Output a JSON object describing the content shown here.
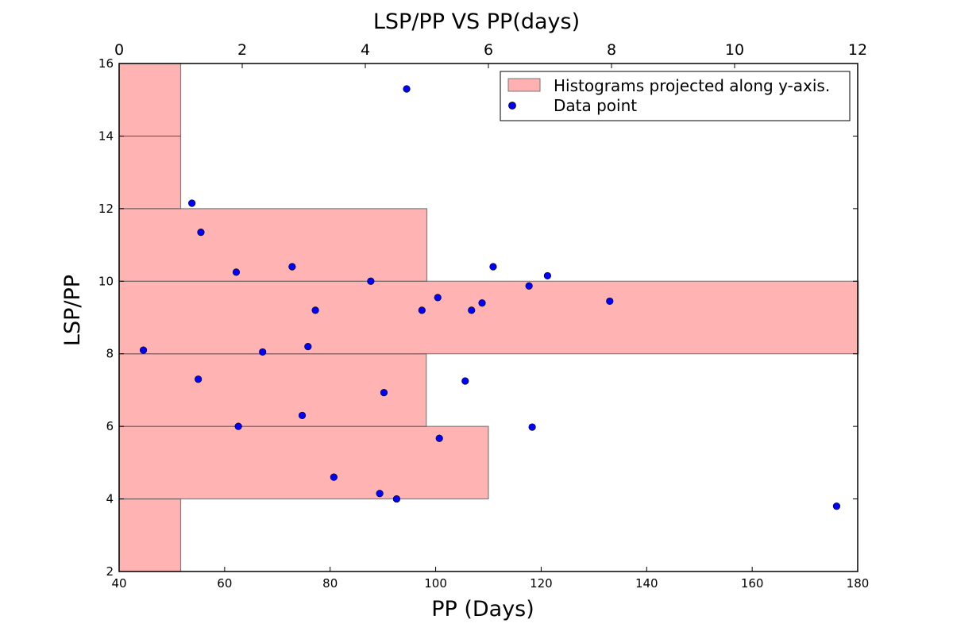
{
  "chart_data": {
    "type": "scatter",
    "title": "LSP/PP  VS PP(days)",
    "xlabel": "PP (Days)",
    "ylabel": "LSP/PP",
    "xlim": [
      40,
      180
    ],
    "ylim": [
      2,
      16
    ],
    "xticks": [
      40,
      60,
      80,
      100,
      120,
      140,
      160,
      180
    ],
    "yticks": [
      2,
      4,
      6,
      8,
      10,
      12,
      14,
      16
    ],
    "top_axis": {
      "xlim": [
        0,
        12
      ],
      "xticks": [
        0,
        2,
        4,
        6,
        8,
        10,
        12
      ]
    },
    "colors": {
      "histogram_fill": "#ff9999",
      "histogram_edge": "#555555",
      "point_fill": "#0000ff",
      "point_edge": "#000000"
    },
    "histogram": {
      "name": "Histograms projected along y-axis.",
      "bins": [
        {
          "y0": 2,
          "y1": 4,
          "count": 1
        },
        {
          "y0": 4,
          "y1": 6,
          "count": 6
        },
        {
          "y0": 6,
          "y1": 8,
          "count": 4.99
        },
        {
          "y0": 8,
          "y1": 10,
          "count": 12.01
        },
        {
          "y0": 10,
          "y1": 12,
          "count": 5.0
        },
        {
          "y0": 12,
          "y1": 14,
          "count": 1
        },
        {
          "y0": 14,
          "y1": 16,
          "count": 1
        }
      ]
    },
    "series": [
      {
        "name": "Data point",
        "points": [
          [
            94.5,
            15.3
          ],
          [
            53.8,
            12.15
          ],
          [
            55.5,
            11.35
          ],
          [
            62.2,
            10.25
          ],
          [
            72.8,
            10.4
          ],
          [
            87.7,
            10.0
          ],
          [
            110.9,
            10.4
          ],
          [
            121.2,
            10.15
          ],
          [
            117.7,
            9.87
          ],
          [
            100.4,
            9.55
          ],
          [
            108.8,
            9.4
          ],
          [
            133.0,
            9.45
          ],
          [
            77.2,
            9.2
          ],
          [
            97.4,
            9.2
          ],
          [
            106.8,
            9.2
          ],
          [
            44.6,
            8.1
          ],
          [
            67.2,
            8.05
          ],
          [
            75.8,
            8.2
          ],
          [
            55.0,
            7.3
          ],
          [
            90.2,
            6.93
          ],
          [
            105.6,
            7.25
          ],
          [
            74.7,
            6.3
          ],
          [
            62.6,
            6.0
          ],
          [
            118.3,
            5.98
          ],
          [
            100.7,
            5.67
          ],
          [
            80.7,
            4.6
          ],
          [
            89.4,
            4.15
          ],
          [
            92.6,
            4.0
          ],
          [
            176.0,
            3.8
          ]
        ]
      }
    ],
    "legend": {
      "location": "top-right",
      "entries": [
        "Histograms projected along y-axis.",
        "Data point"
      ]
    }
  }
}
